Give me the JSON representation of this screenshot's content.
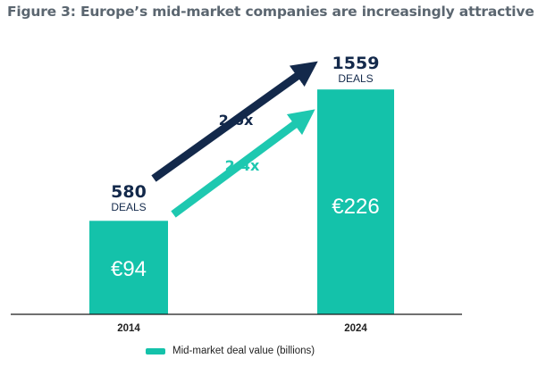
{
  "chart_data": {
    "type": "bar",
    "title": "Figure 3: Europe’s mid-market companies are increasingly attractive",
    "categories": [
      "2014",
      "2024"
    ],
    "series": [
      {
        "name": "Mid-market deal value (billions)",
        "values": [
          94,
          226
        ],
        "value_labels": [
          "€94",
          "€226"
        ]
      }
    ],
    "deals": [
      {
        "count": "580",
        "unit": "DEALS"
      },
      {
        "count": "1559",
        "unit": "DEALS"
      }
    ],
    "arrows": [
      {
        "label": "2.6x",
        "color": "#13294b"
      },
      {
        "label": "2.4x",
        "color": "#1ec8b0"
      }
    ],
    "ylim": [
      0,
      245
    ],
    "grid": false,
    "legend_position": "bottom"
  },
  "colors": {
    "bar": "#14c2aa",
    "deals_arrow": "#13294b",
    "value_arrow": "#1ec8b0",
    "title": "#5b6670",
    "baseline": "#1a1a1a"
  }
}
